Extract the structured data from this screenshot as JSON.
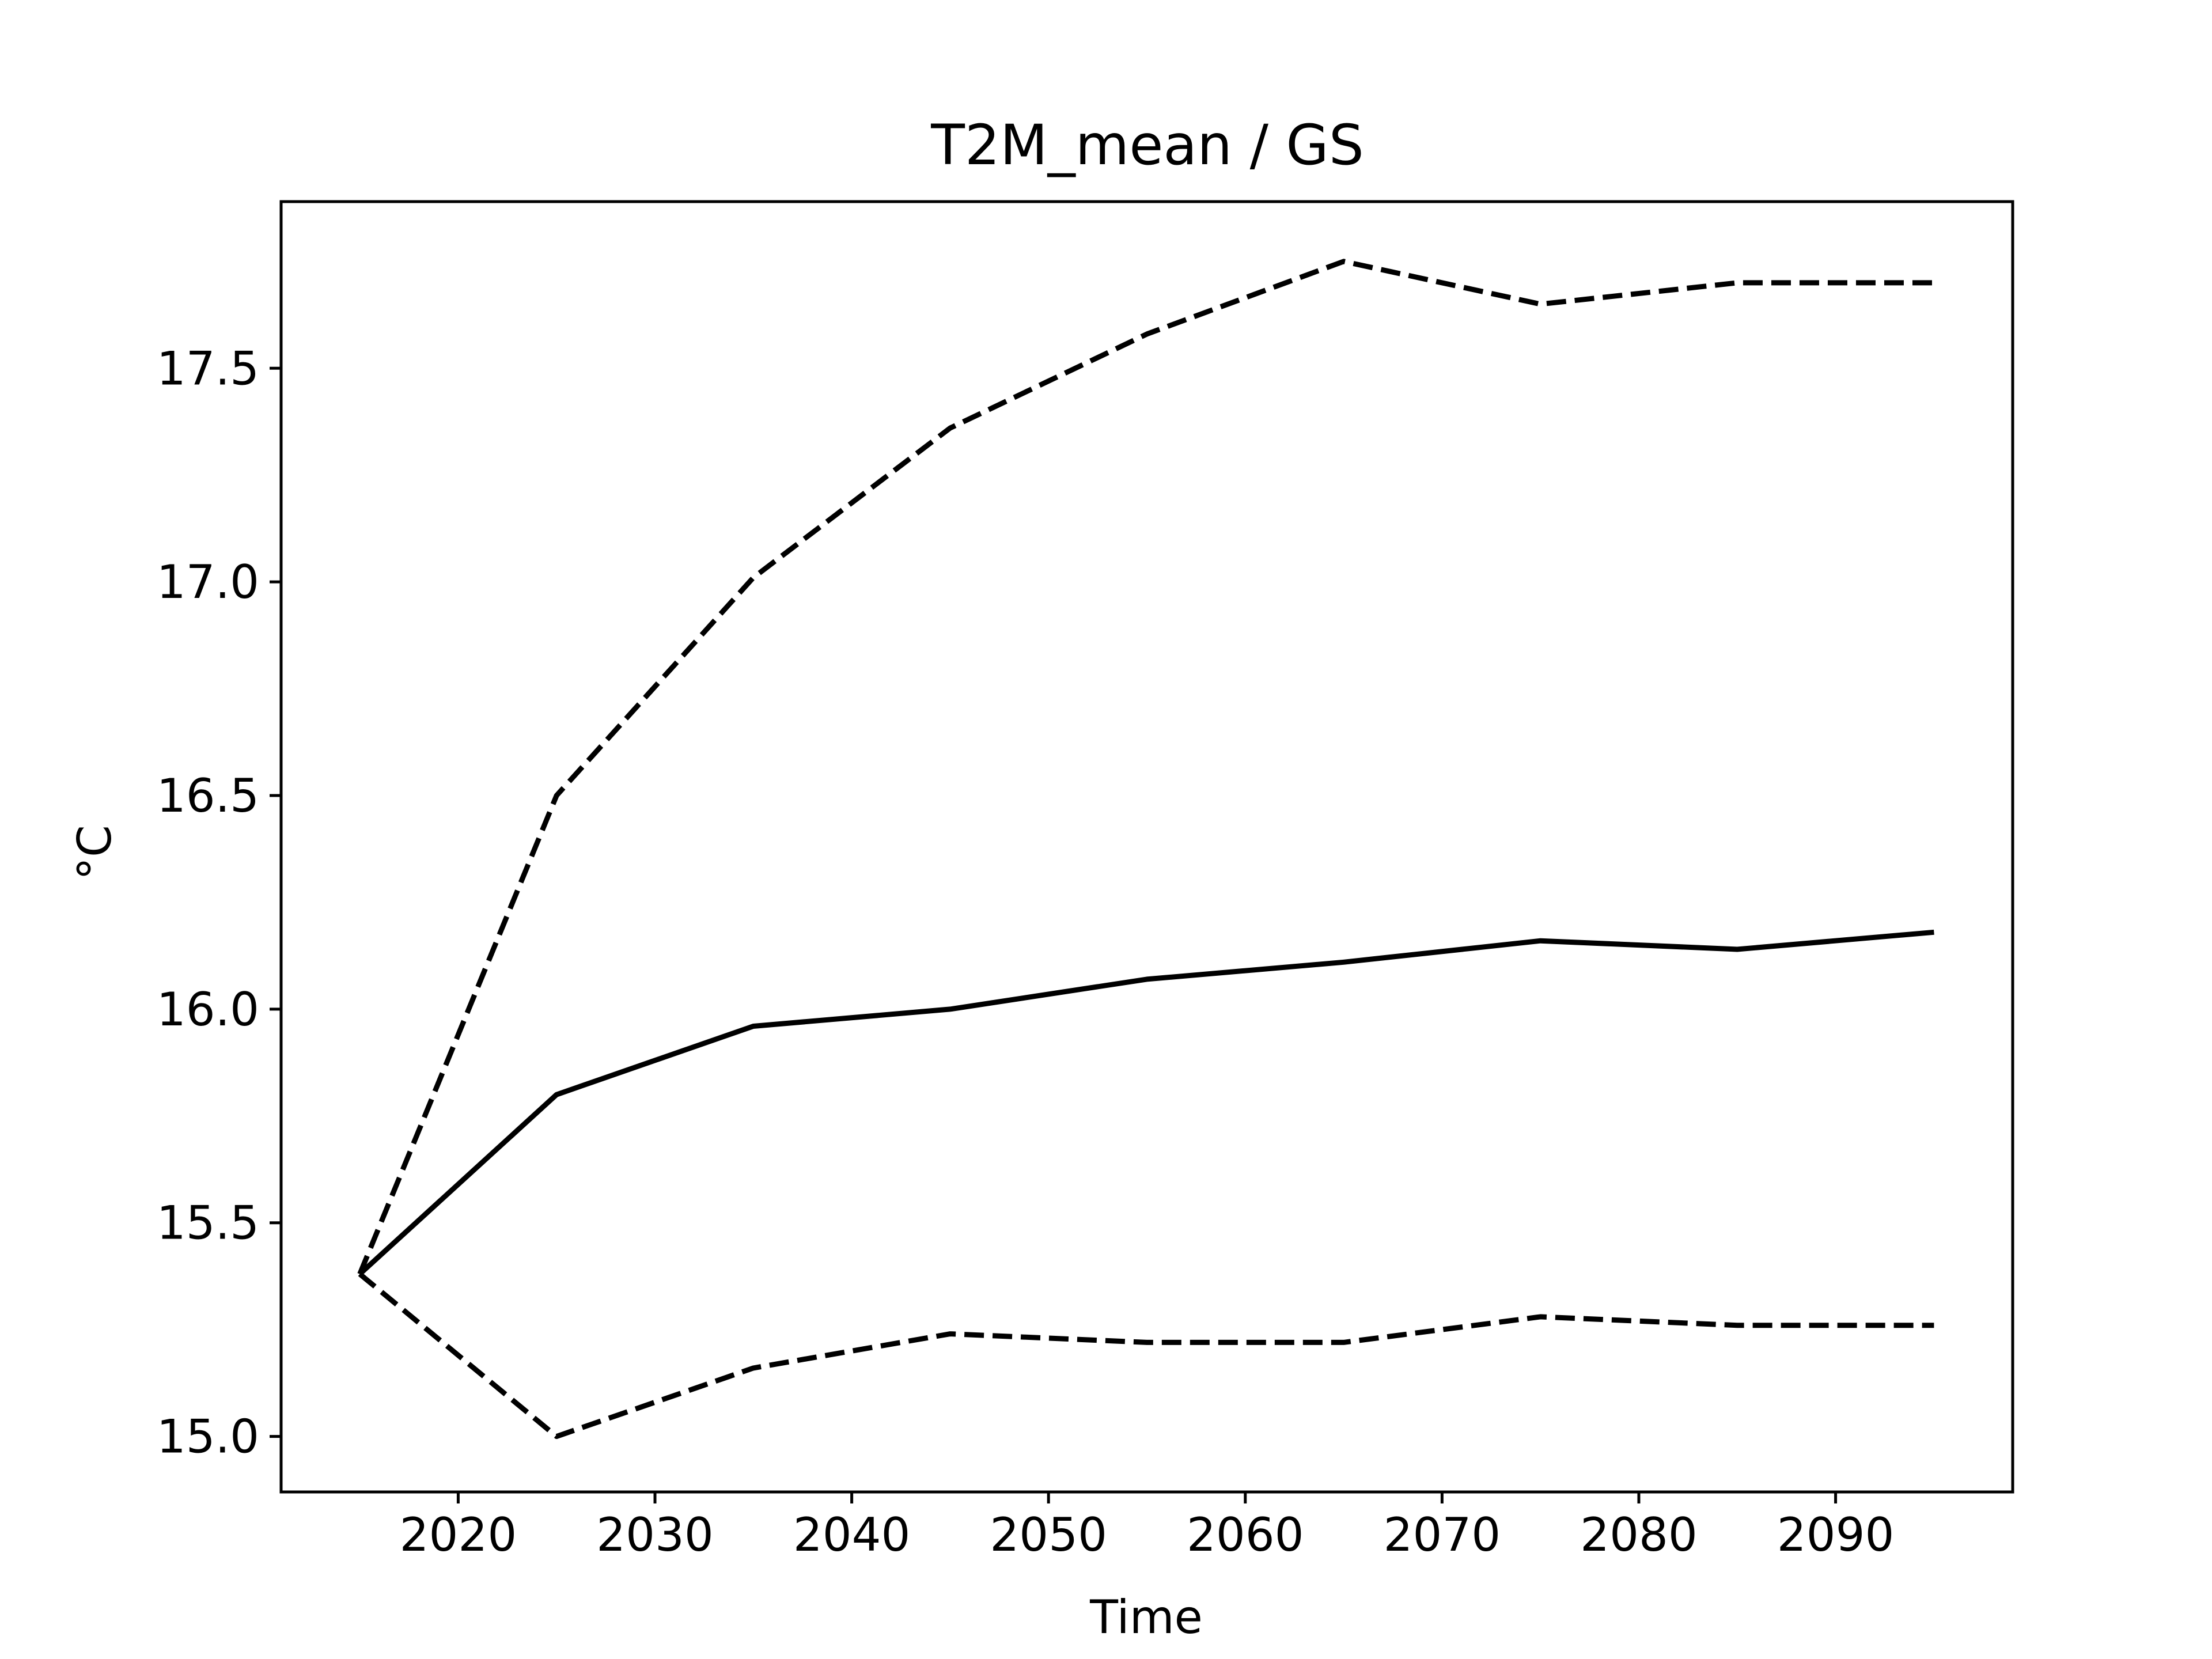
{
  "chart_data": {
    "type": "line",
    "title": "T2M_mean / GS",
    "xlabel": "Time",
    "ylabel": "°C",
    "xlim": [
      2011,
      2099
    ],
    "ylim": [
      14.87,
      17.89
    ],
    "grid": false,
    "legend": "none",
    "x": [
      2015,
      2025,
      2035,
      2045,
      2055,
      2065,
      2075,
      2085,
      2095
    ],
    "xticks": [
      2020,
      2030,
      2040,
      2050,
      2060,
      2070,
      2080,
      2090
    ],
    "xtick_labels": [
      "2020",
      "2030",
      "2040",
      "2050",
      "2060",
      "2070",
      "2080",
      "2090"
    ],
    "yticks": [
      15.0,
      15.5,
      16.0,
      16.5,
      17.0,
      17.5
    ],
    "ytick_labels": [
      "15.0",
      "15.5",
      "16.0",
      "16.5",
      "17.0",
      "17.5"
    ],
    "series": [
      {
        "style": "solid",
        "color": "#000000",
        "values": [
          15.38,
          15.8,
          15.96,
          16.0,
          16.07,
          16.11,
          16.16,
          16.14,
          16.18
        ]
      },
      {
        "style": "dashed",
        "color": "#000000",
        "values": [
          15.38,
          16.5,
          17.01,
          17.36,
          17.58,
          17.75,
          17.65,
          17.7,
          17.7
        ]
      },
      {
        "style": "dashed",
        "color": "#000000",
        "values": [
          15.38,
          15.0,
          15.16,
          15.24,
          15.22,
          15.22,
          15.28,
          15.26,
          15.26
        ]
      }
    ]
  }
}
